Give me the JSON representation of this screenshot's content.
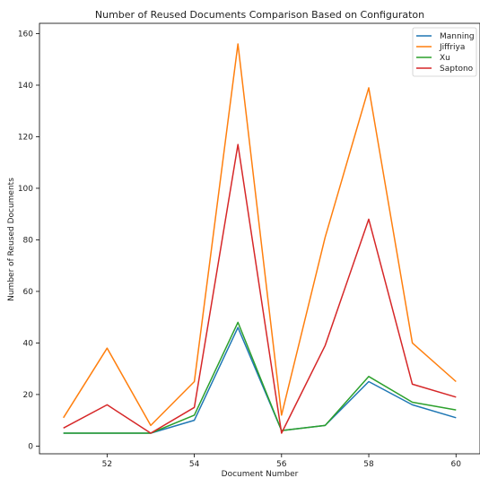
{
  "chart_data": {
    "type": "line",
    "title": "Number of Reused Documents Comparison Based on Configuraton",
    "xlabel": "Document Number",
    "ylabel": "Number of Reused Documents",
    "x": [
      51,
      52,
      53,
      54,
      55,
      56,
      57,
      58,
      59,
      60
    ],
    "xlim": [
      50.45,
      60.55
    ],
    "ylim": [
      -3,
      164
    ],
    "xticks": [
      52,
      54,
      56,
      58,
      60
    ],
    "yticks": [
      0,
      20,
      40,
      60,
      80,
      100,
      120,
      140,
      160
    ],
    "grid": false,
    "legend_position": "top-right",
    "series": [
      {
        "name": "Manning",
        "color": "#1f77b4",
        "values": [
          5,
          5,
          5,
          10,
          46,
          6,
          8,
          25,
          16,
          11
        ]
      },
      {
        "name": "Jiffriya",
        "color": "#ff7f0e",
        "values": [
          11,
          38,
          8,
          25,
          156,
          12,
          81,
          139,
          40,
          25
        ]
      },
      {
        "name": "Xu",
        "color": "#2ca02c",
        "values": [
          5,
          5,
          5,
          12,
          48,
          6,
          8,
          27,
          17,
          14
        ]
      },
      {
        "name": "Saptono",
        "color": "#d62728",
        "values": [
          7,
          16,
          5,
          15,
          117,
          5,
          39,
          88,
          24,
          19
        ]
      }
    ]
  }
}
